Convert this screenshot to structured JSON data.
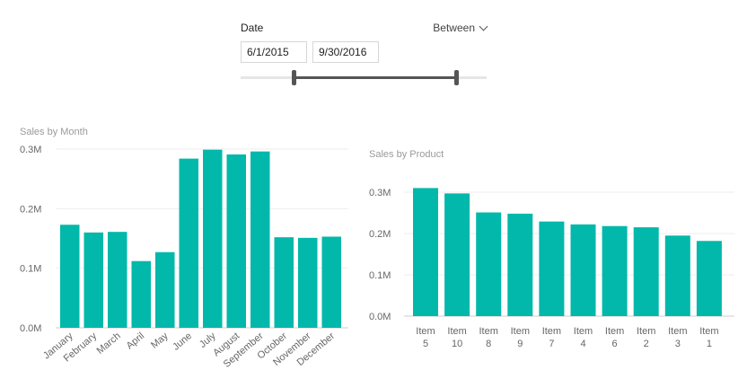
{
  "slicer": {
    "title": "Date",
    "mode": "Between",
    "start_value": "6/1/2015",
    "end_value": "9/30/2016"
  },
  "colors": {
    "bar": "#01B8AA",
    "slider": "#555555"
  },
  "chart_data": [
    {
      "type": "bar",
      "title": "Sales by Month",
      "categories": [
        "January",
        "February",
        "March",
        "April",
        "May",
        "June",
        "July",
        "August",
        "September",
        "October",
        "November",
        "December"
      ],
      "values": [
        0.173,
        0.16,
        0.161,
        0.112,
        0.127,
        0.284,
        0.299,
        0.291,
        0.296,
        0.152,
        0.151,
        0.153
      ],
      "yticks": [
        "0.0M",
        "0.1M",
        "0.2M",
        "0.3M"
      ],
      "ylim": [
        0,
        0.3
      ],
      "xlabel": "",
      "ylabel": ""
    },
    {
      "type": "bar",
      "title": "Sales by Product",
      "categories": [
        "Item 5",
        "Item 10",
        "Item 8",
        "Item 9",
        "Item 7",
        "Item 4",
        "Item 6",
        "Item 2",
        "Item 3",
        "Item 1"
      ],
      "values": [
        0.31,
        0.297,
        0.251,
        0.248,
        0.229,
        0.222,
        0.218,
        0.215,
        0.195,
        0.182
      ],
      "yticks": [
        "0.0M",
        "0.1M",
        "0.2M",
        "0.3M"
      ],
      "ylim": [
        0,
        0.3
      ],
      "xlabel": "",
      "ylabel": ""
    }
  ]
}
